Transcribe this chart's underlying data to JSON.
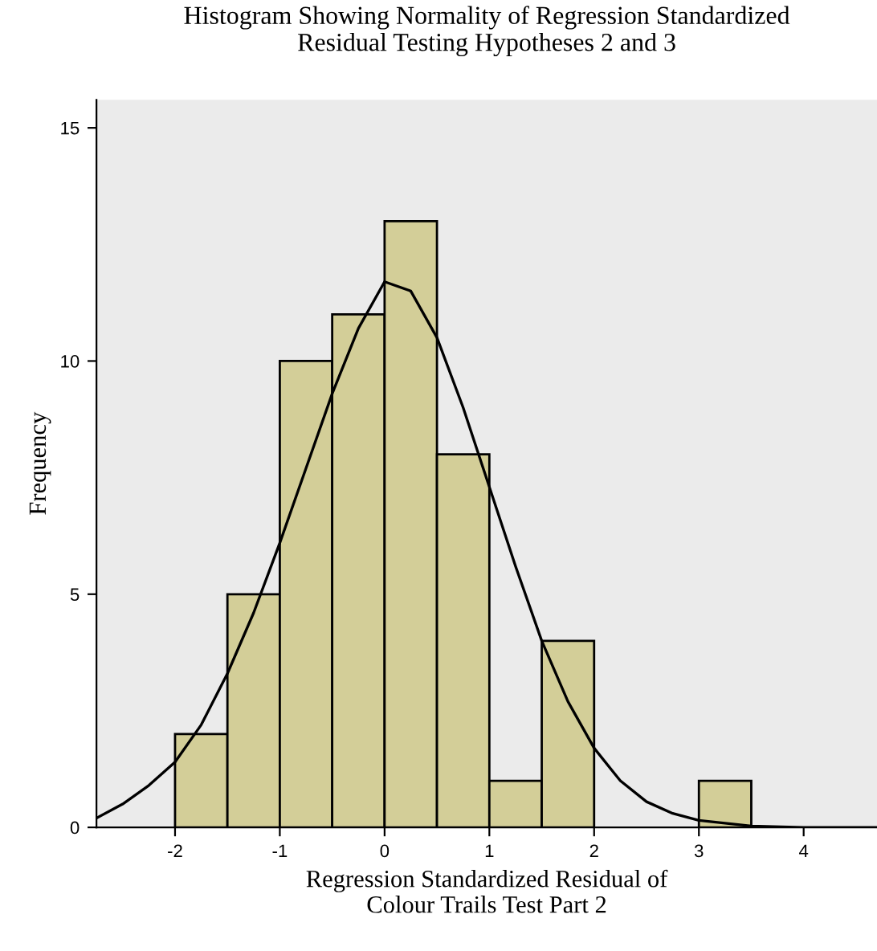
{
  "chart_data": {
    "type": "histogram",
    "title": "Histogram Showing Normality of Regression Standardized\nResidual Testing Hypotheses 2 and 3",
    "xlabel": "Regression Standardized Residual of\nColour Trails Test Part 2",
    "ylabel": "Frequency",
    "series": [
      {
        "bins": [
          -2,
          -1.5,
          -1,
          -0.5,
          0,
          0.5,
          1,
          1.5,
          2,
          2.5,
          3,
          3.5
        ],
        "values": [
          2,
          5,
          10,
          11,
          13,
          8,
          1,
          4,
          0,
          0,
          1
        ],
        "color": "#d3ce98"
      },
      {
        "type": "line",
        "x": [
          -2.75,
          -2.5,
          -2.25,
          -2,
          -1.75,
          -1.5,
          -1.25,
          -1,
          -0.75,
          -0.5,
          -0.25,
          0,
          0.25,
          0.5,
          0.75,
          1,
          1.25,
          1.5,
          1.75,
          2,
          2.25,
          2.5,
          2.75,
          3,
          3.5,
          4,
          4.7
        ],
        "values": [
          0.2,
          0.5,
          0.9,
          1.4,
          2.2,
          3.3,
          4.6,
          6.1,
          7.7,
          9.3,
          10.7,
          11.7,
          11.5,
          10.5,
          9.0,
          7.3,
          5.6,
          4.0,
          2.7,
          1.7,
          1.0,
          0.55,
          0.3,
          0.15,
          0.03,
          0,
          0
        ],
        "color": "#000000"
      }
    ],
    "xlim": [
      -2.75,
      4.7
    ],
    "ylim": [
      0,
      15.6
    ],
    "xticks": [
      -2,
      -1,
      0,
      1,
      2,
      3,
      4
    ],
    "yticks": [
      0,
      5,
      10,
      15
    ],
    "grid": false,
    "legend": false
  }
}
